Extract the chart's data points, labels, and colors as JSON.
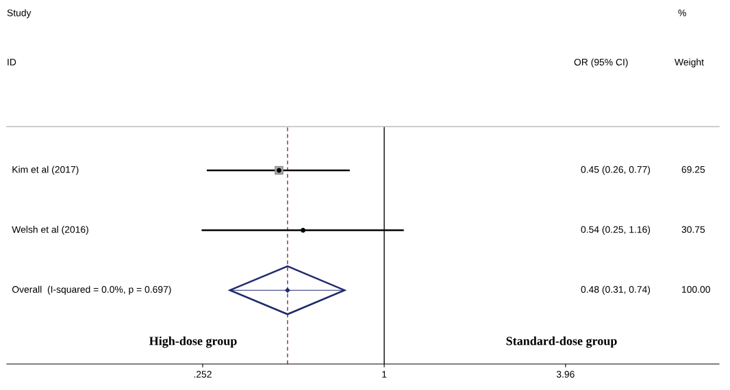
{
  "chart_data": {
    "type": "scatter",
    "orientation": "horizontal",
    "log": "x",
    "grid": false,
    "categories": [
      "Kim et al (2017)",
      "Welsh et al (2016)",
      "Overall  (I-squared = 0.0%, p = 0.697)"
    ],
    "xlim": [
      0.057,
      12.7
    ],
    "xticks": [
      {
        "value": 0.252,
        "label": ".252"
      },
      1,
      3.96
    ],
    "series": [
      {
        "type": "scatter",
        "marker": "square",
        "color": "#000000",
        "values": [
          0.45,
          0.54,
          null
        ],
        "errors": [
          [
            0.26,
            0.77
          ],
          [
            0.25,
            1.16
          ],
          null
        ]
      },
      {
        "type": "scatter",
        "marker": "diamond",
        "color": "#1f2a6e",
        "values": [
          null,
          null,
          0.48
        ],
        "errors": [
          null,
          null,
          [
            0.31,
            0.74
          ]
        ]
      }
    ],
    "ref_lines": [
      {
        "axis": "x",
        "value": 1,
        "color": "#000000",
        "line_style": "solid"
      },
      {
        "axis": "x",
        "value": 0.48,
        "color": "#8b2a3a",
        "line_style": "dashed"
      }
    ],
    "annotations": [
      "Study",
      "ID",
      "OR (95% CI)",
      "%",
      "Weight",
      "0.45 (0.26, 0.77)",
      "0.54 (0.25, 1.16)",
      "0.48 (0.31, 0.74)",
      "69.25",
      "30.75",
      "100.00",
      "High-dose group",
      "Standard-dose group"
    ]
  }
}
